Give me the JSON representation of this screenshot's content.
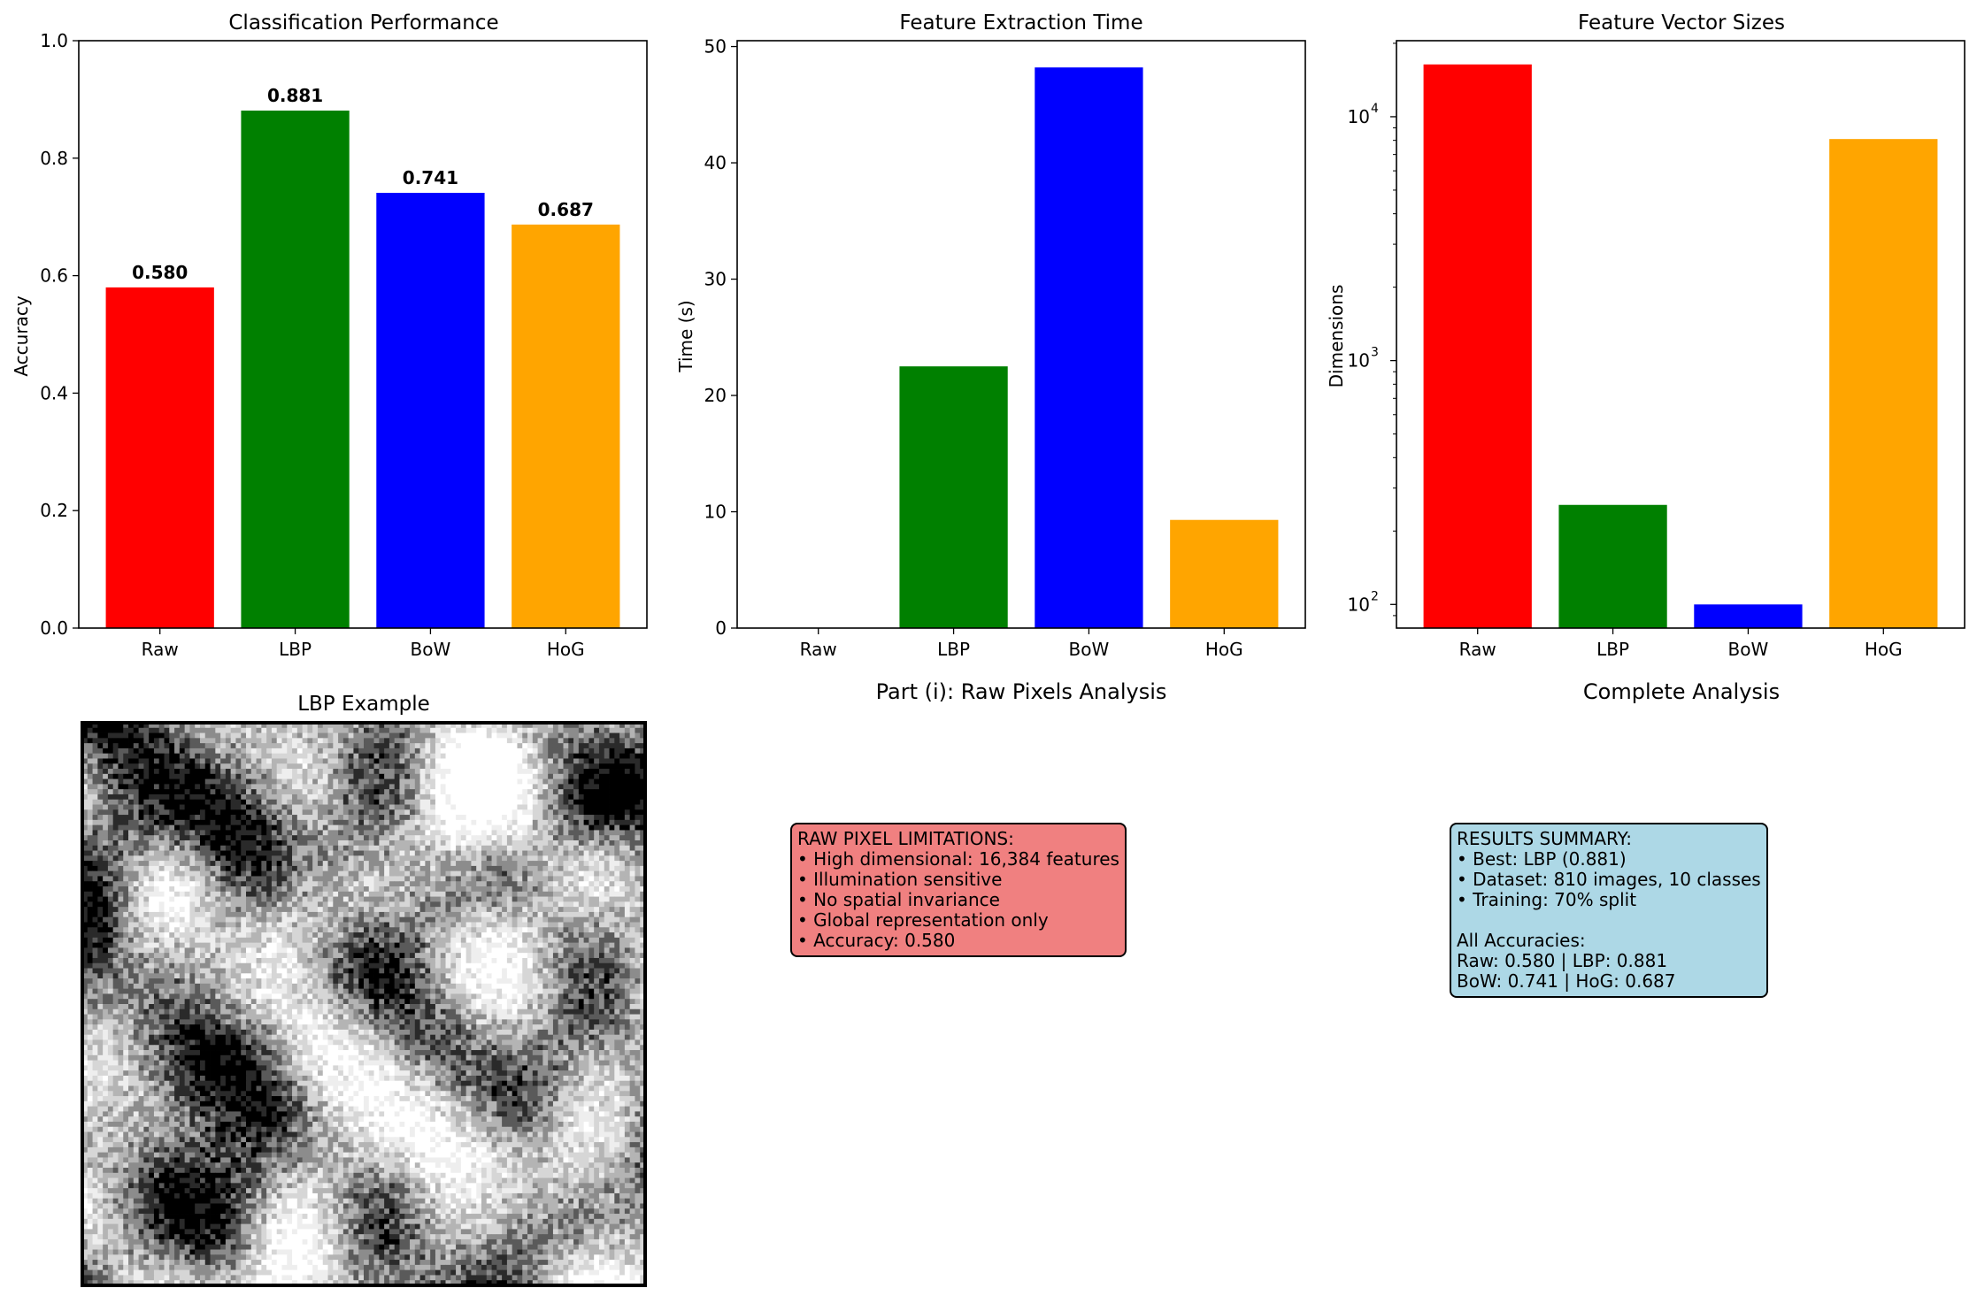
{
  "chart_data": [
    {
      "type": "bar",
      "title": "Classification Performance",
      "xlabel": "",
      "ylabel": "Accuracy",
      "categories": [
        "Raw",
        "LBP",
        "BoW",
        "HoG"
      ],
      "values": [
        0.58,
        0.881,
        0.741,
        0.687
      ],
      "value_labels": [
        "0.580",
        "0.881",
        "0.741",
        "0.687"
      ],
      "colors": [
        "#ff0000",
        "#008000",
        "#0000ff",
        "#ffa500"
      ],
      "ylim": [
        0,
        1.0
      ],
      "yticks": [
        0.0,
        0.2,
        0.4,
        0.6,
        0.8,
        1.0
      ],
      "ytick_labels": [
        "0.0",
        "0.2",
        "0.4",
        "0.6",
        "0.8",
        "1.0"
      ],
      "grid": false
    },
    {
      "type": "bar",
      "title": "Feature Extraction Time",
      "xlabel": "",
      "ylabel": "Time (s)",
      "categories": [
        "Raw",
        "LBP",
        "BoW",
        "HoG"
      ],
      "values": [
        0.0,
        22.5,
        48.2,
        9.3
      ],
      "colors": [
        "#ff0000",
        "#008000",
        "#0000ff",
        "#ffa500"
      ],
      "ylim": [
        0,
        50.5
      ],
      "yticks": [
        0,
        10,
        20,
        30,
        40,
        50
      ],
      "ytick_labels": [
        "0",
        "10",
        "20",
        "30",
        "40",
        "50"
      ],
      "grid": false
    },
    {
      "type": "bar",
      "title": "Feature Vector Sizes",
      "xlabel": "",
      "ylabel": "Dimensions",
      "categories": [
        "Raw",
        "LBP",
        "BoW",
        "HoG"
      ],
      "values": [
        16384,
        256,
        100,
        8100
      ],
      "colors": [
        "#ff0000",
        "#008000",
        "#0000ff",
        "#ffa500"
      ],
      "yscale": "log",
      "ylim": [
        80,
        20500
      ],
      "yticks": [
        100,
        1000,
        10000
      ],
      "ytick_labels": [
        {
          "base": "10",
          "exp": "2"
        },
        {
          "base": "10",
          "exp": "3"
        },
        {
          "base": "10",
          "exp": "4"
        }
      ],
      "grid": false
    }
  ],
  "lbp_panel": {
    "title": "LBP Example",
    "image_description": "grayscale local binary pattern texture image"
  },
  "raw_panel": {
    "title": "Part (i): Raw Pixels Analysis",
    "box_color": "#f08080",
    "lines": [
      "RAW PIXEL LIMITATIONS:",
      "• High dimensional: 16,384 features",
      "• Illumination sensitive",
      "• No spatial invariance",
      "• Global representation only",
      "• Accuracy: 0.580"
    ]
  },
  "summary_panel": {
    "title": "Complete Analysis",
    "box_color": "#add8e6",
    "lines": [
      "RESULTS SUMMARY:",
      "• Best: LBP (0.881)",
      "• Dataset: 810 images, 10 classes",
      "• Training: 70% split",
      "",
      "All Accuracies:",
      "Raw: 0.580 | LBP: 0.881",
      "BoW: 0.741 | HoG: 0.687"
    ]
  }
}
